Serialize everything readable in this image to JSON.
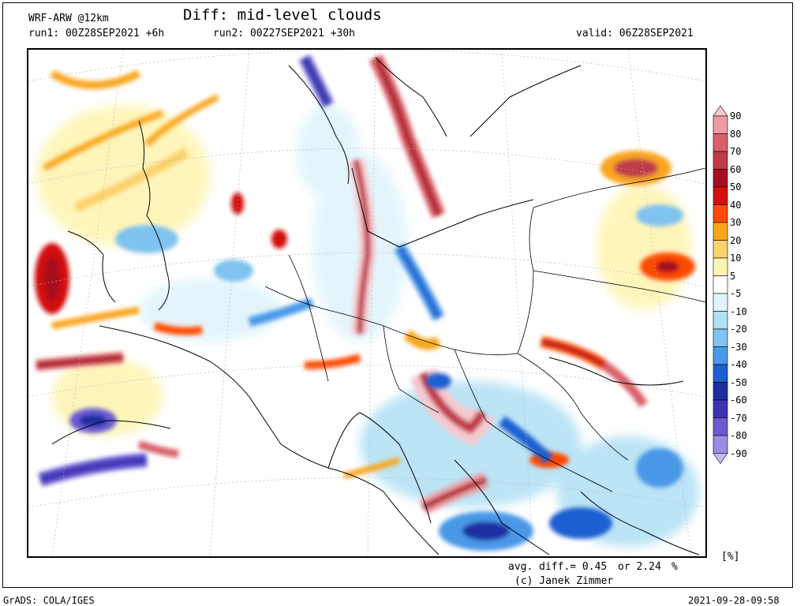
{
  "header": {
    "model": "WRF-ARW @12km",
    "title": "Diff: mid-level clouds",
    "run1": "run1: 00Z28SEP2021 +6h",
    "run2": "run2: 00Z27SEP2021 +30h",
    "valid": "valid: 06Z28SEP2021"
  },
  "colorbar": {
    "units": "[%]",
    "levels": [
      "90",
      "80",
      "70",
      "60",
      "50",
      "40",
      "30",
      "20",
      "10",
      "5",
      "-5",
      "-10",
      "-20",
      "-30",
      "-40",
      "-50",
      "-60",
      "-70",
      "-80",
      "-90"
    ],
    "colors": [
      "#f7c9cf",
      "#ee9ca2",
      "#d9606a",
      "#c03a48",
      "#a60f1f",
      "#d21010",
      "#ff4a05",
      "#f9a51c",
      "#fbd26c",
      "#fff4b0",
      "#ffffff",
      "#dff4fb",
      "#b0e0f4",
      "#7fc3f0",
      "#4a98e8",
      "#1c5fd0",
      "#1d2fa0",
      "#3e32b4",
      "#6a5bd2",
      "#9a8ce6",
      "#c4b8f4"
    ]
  },
  "stats": {
    "avg_label": "avg. diff.= 0.45",
    "or_label": "or 2.24",
    "pct": "%"
  },
  "credit": "(c) Janek Zimmer",
  "footer": {
    "software": "GrADS: COLA/IGES",
    "timestamp": "2021-09-28-09:58"
  }
}
